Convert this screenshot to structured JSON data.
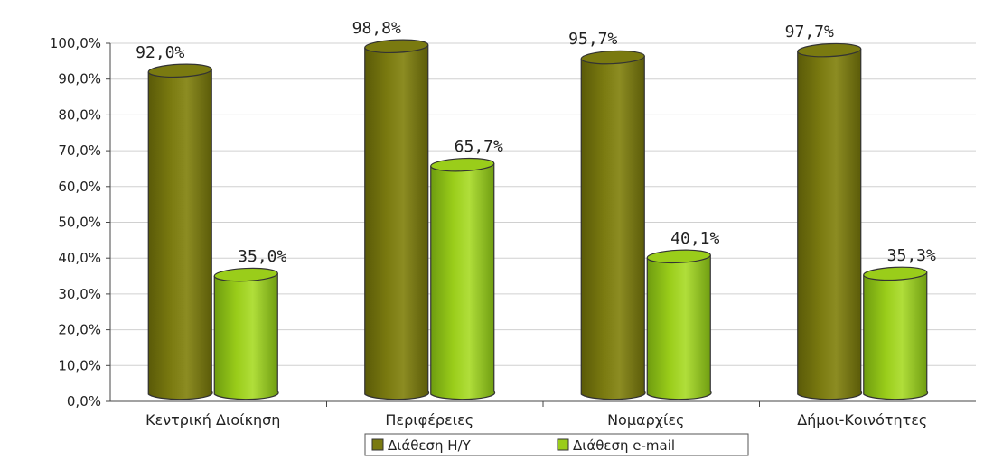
{
  "chart_data": {
    "type": "bar",
    "categories": [
      "Κεντρική Διοίκηση",
      "Περιφέρειες",
      "Νομαρχίες",
      "Δήμοι-Κοινότητες"
    ],
    "series": [
      {
        "name": "Διάθεση Η/Υ",
        "values": [
          92.0,
          98.8,
          95.7,
          97.7
        ],
        "labels": [
          "92,0%",
          "98,8%",
          "95,7%",
          "97,7%"
        ],
        "color": "#7a7a10"
      },
      {
        "name": "Διάθεση e-mail",
        "values": [
          35.0,
          65.7,
          40.1,
          35.3
        ],
        "labels": [
          "35,0%",
          "65,7%",
          "40,1%",
          "35,3%"
        ],
        "color": "#9acd1a"
      }
    ],
    "yticks": [
      0,
      10,
      20,
      30,
      40,
      50,
      60,
      70,
      80,
      90,
      100
    ],
    "ytick_labels": [
      "0,0%",
      "10,0%",
      "20,0%",
      "30,0%",
      "40,0%",
      "50,0%",
      "60,0%",
      "70,0%",
      "80,0%",
      "90,0%",
      "100,0%"
    ],
    "ylim": [
      0,
      100
    ],
    "grid": true,
    "legend": "bottom"
  }
}
